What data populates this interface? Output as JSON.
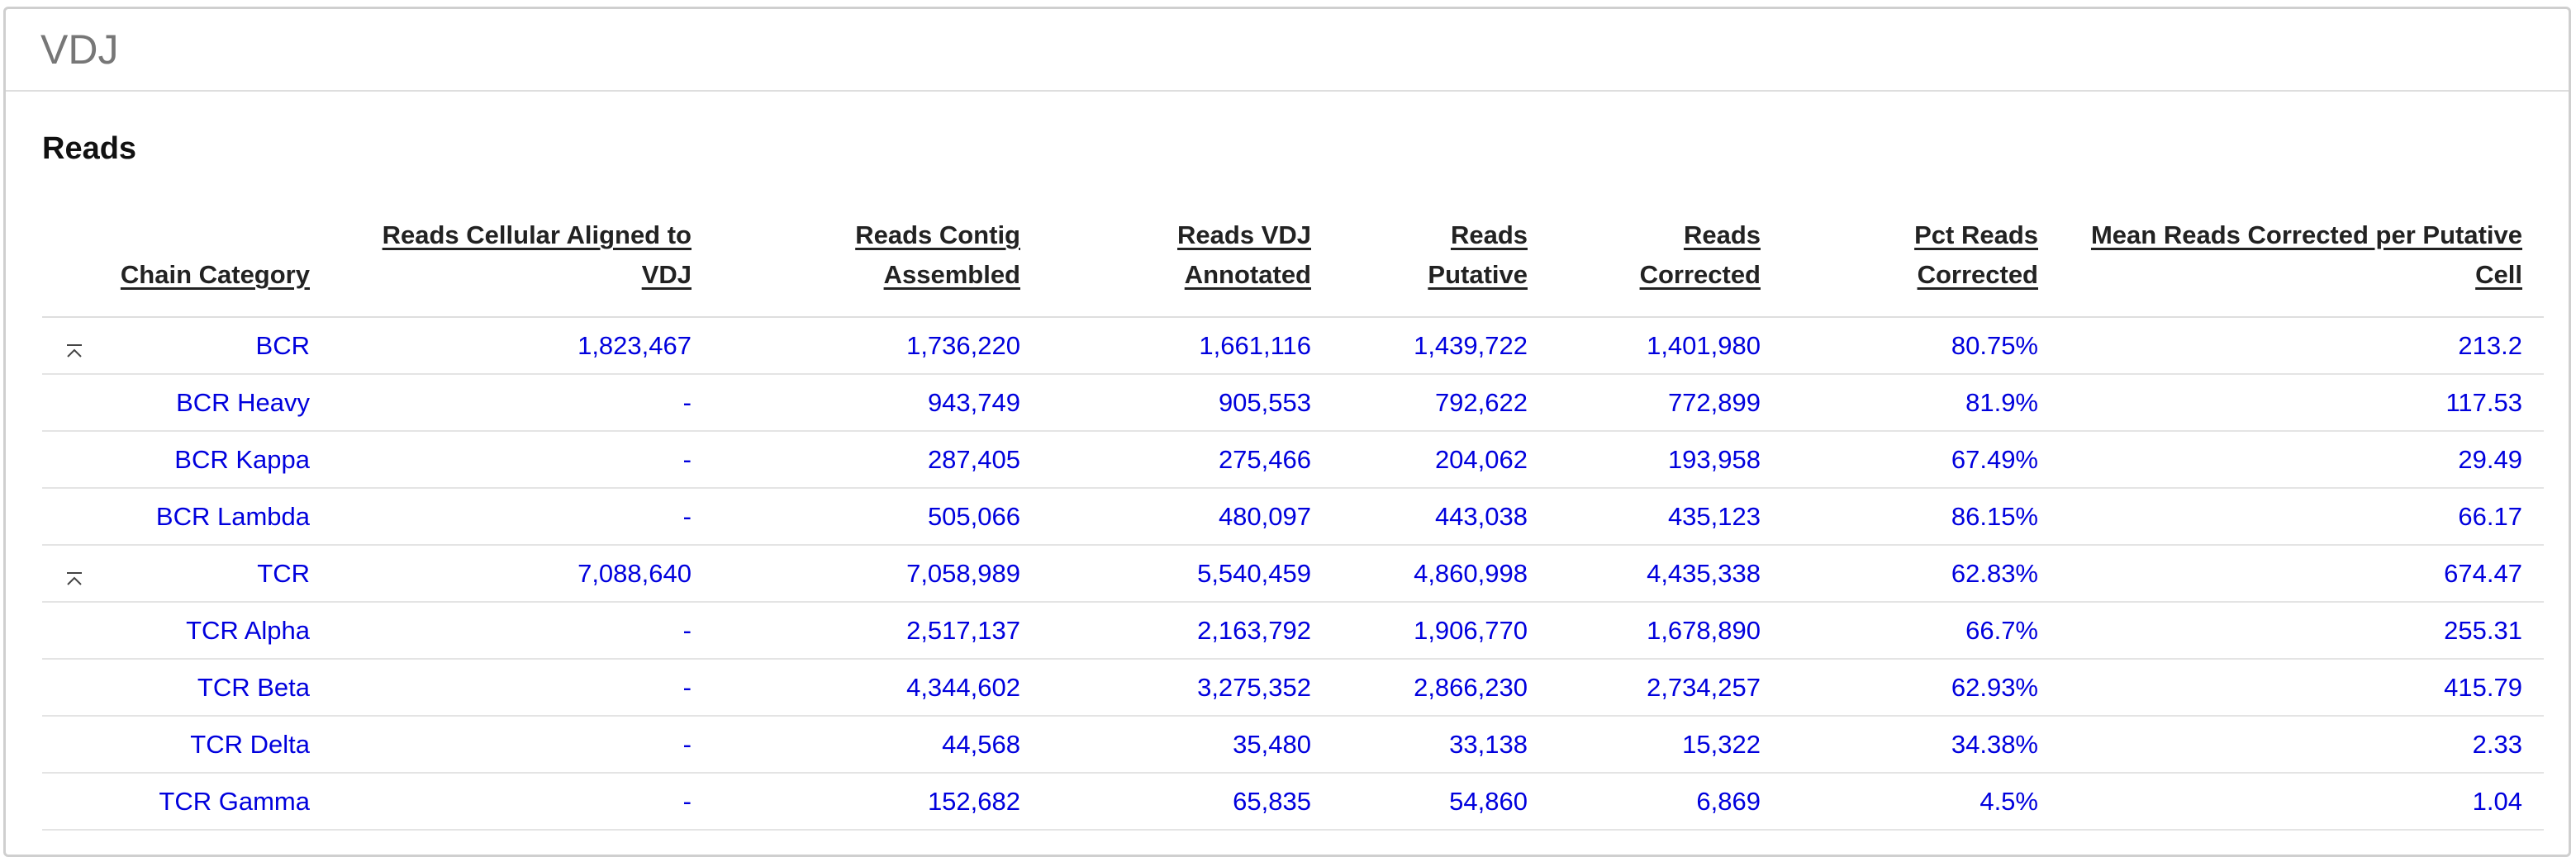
{
  "panel": {
    "title": "VDJ"
  },
  "section": {
    "title": "Reads"
  },
  "table": {
    "columns": [
      "Chain Category",
      "Reads Cellular Aligned to VDJ",
      "Reads Contig Assembled",
      "Reads VDJ Annotated",
      "Reads Putative",
      "Reads Corrected",
      "Pct Reads Corrected",
      "Mean Reads Corrected per Putative Cell"
    ],
    "rows": [
      {
        "group": true,
        "cells": [
          "BCR",
          "1,823,467",
          "1,736,220",
          "1,661,116",
          "1,439,722",
          "1,401,980",
          "80.75%",
          "213.2"
        ]
      },
      {
        "group": false,
        "cells": [
          "BCR Heavy",
          "-",
          "943,749",
          "905,553",
          "792,622",
          "772,899",
          "81.9%",
          "117.53"
        ]
      },
      {
        "group": false,
        "cells": [
          "BCR Kappa",
          "-",
          "287,405",
          "275,466",
          "204,062",
          "193,958",
          "67.49%",
          "29.49"
        ]
      },
      {
        "group": false,
        "cells": [
          "BCR Lambda",
          "-",
          "505,066",
          "480,097",
          "443,038",
          "435,123",
          "86.15%",
          "66.17"
        ]
      },
      {
        "group": true,
        "cells": [
          "TCR",
          "7,088,640",
          "7,058,989",
          "5,540,459",
          "4,860,998",
          "4,435,338",
          "62.83%",
          "674.47"
        ]
      },
      {
        "group": false,
        "cells": [
          "TCR Alpha",
          "-",
          "2,517,137",
          "2,163,792",
          "1,906,770",
          "1,678,890",
          "66.7%",
          "255.31"
        ]
      },
      {
        "group": false,
        "cells": [
          "TCR Beta",
          "-",
          "4,344,602",
          "3,275,352",
          "2,866,230",
          "2,734,257",
          "62.93%",
          "415.79"
        ]
      },
      {
        "group": false,
        "cells": [
          "TCR Delta",
          "-",
          "44,568",
          "35,480",
          "33,138",
          "15,322",
          "34.38%",
          "2.33"
        ]
      },
      {
        "group": false,
        "cells": [
          "TCR Gamma",
          "-",
          "152,682",
          "65,835",
          "54,860",
          "6,869",
          "4.5%",
          "1.04"
        ]
      }
    ]
  },
  "icons": {
    "collapse": "collapse-up-icon"
  },
  "colors": {
    "link": "#0000dd",
    "title": "#777777",
    "border": "#cfcfcf"
  }
}
